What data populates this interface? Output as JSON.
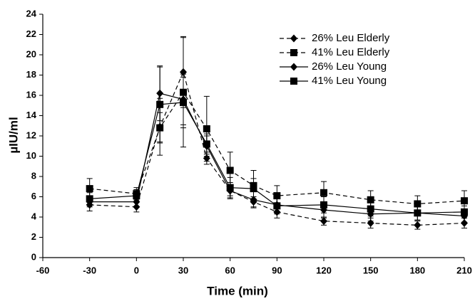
{
  "chart_data": {
    "type": "line",
    "x_label": "Time (min)",
    "y_label": "µIU/ml",
    "x": [
      -30,
      0,
      15,
      30,
      45,
      60,
      75,
      90,
      120,
      150,
      180,
      210
    ],
    "xlim": [
      -60,
      210
    ],
    "xticks": [
      -60,
      -30,
      0,
      30,
      60,
      90,
      120,
      150,
      180,
      210
    ],
    "ylim": [
      0,
      24
    ],
    "yticks": [
      0,
      2,
      4,
      6,
      8,
      10,
      12,
      14,
      16,
      18,
      20,
      22,
      24
    ],
    "legend": "upper right",
    "series": [
      {
        "name": "26% Leu Elderly",
        "color": "#000000",
        "dashed": true,
        "marker": "diamond",
        "values": [
          5.2,
          5.0,
          12.9,
          18.3,
          9.8,
          6.6,
          5.5,
          4.5,
          3.6,
          3.4,
          3.2,
          3.4
        ],
        "errors": [
          0.6,
          0.5,
          2.8,
          3.5,
          0.6,
          0.5,
          0.5,
          0.6,
          0.4,
          0.5,
          0.4,
          0.5
        ]
      },
      {
        "name": "41% Leu Elderly",
        "color": "#000000",
        "dashed": true,
        "marker": "square",
        "values": [
          6.8,
          6.3,
          12.8,
          16.3,
          12.7,
          8.6,
          7.1,
          6.1,
          6.4,
          5.7,
          5.3,
          5.6
        ],
        "errors": [
          1.0,
          0.6,
          1.5,
          5.4,
          3.2,
          1.8,
          1.5,
          1.0,
          1.1,
          0.9,
          0.8,
          1.0
        ]
      },
      {
        "name": "26% Leu Young",
        "color": "#000000",
        "dashed": false,
        "marker": "diamond",
        "values": [
          5.5,
          5.5,
          16.2,
          15.6,
          11.0,
          6.6,
          5.7,
          5.2,
          4.7,
          4.3,
          4.4,
          4.1
        ],
        "errors": [
          0.5,
          0.5,
          2.7,
          2.5,
          1.0,
          0.8,
          0.8,
          0.8,
          0.8,
          0.7,
          0.7,
          0.6
        ]
      },
      {
        "name": "41% Leu Young",
        "color": "#000000",
        "dashed": false,
        "marker": "square",
        "values": [
          5.8,
          6.1,
          15.1,
          15.3,
          11.2,
          6.9,
          6.8,
          5.1,
          5.2,
          4.8,
          4.4,
          4.5
        ],
        "errors": [
          0.6,
          0.6,
          3.7,
          2.5,
          1.0,
          1.0,
          1.0,
          0.8,
          0.8,
          0.7,
          0.7,
          0.6
        ]
      }
    ]
  }
}
